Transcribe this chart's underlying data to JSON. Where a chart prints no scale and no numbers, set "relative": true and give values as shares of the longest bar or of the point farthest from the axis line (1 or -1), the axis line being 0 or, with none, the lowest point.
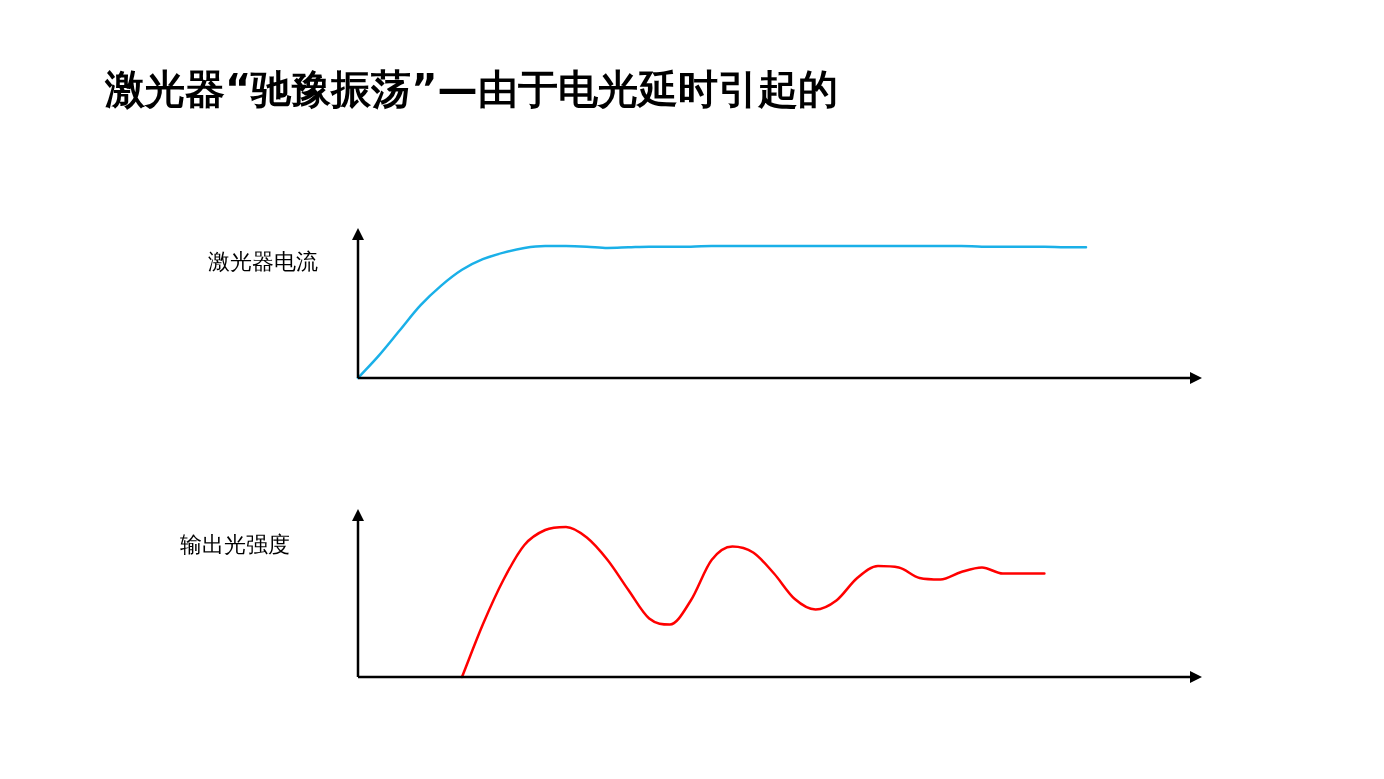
{
  "chart_data": [
    {
      "type": "line",
      "title": "激光器“驰豫振荡”—由于电光延时引起的",
      "ylabel": "激光器电流",
      "relative": true,
      "categories": [
        null,
        null,
        null,
        null,
        null,
        null,
        null,
        null,
        null,
        null,
        null,
        null,
        null,
        null,
        null,
        null,
        null,
        null,
        null,
        null,
        null,
        null,
        null,
        null,
        null,
        null,
        null,
        null,
        null,
        null,
        null,
        null,
        null,
        null,
        null,
        null,
        null,
        null,
        null,
        null,
        null
      ],
      "series": [
        {
          "color": "#1ab0e8",
          "values": [
            0,
            0.17,
            0.36,
            0.55,
            0.7,
            0.82,
            0.9,
            0.95,
            0.985,
            1,
            1,
            0.995,
            0.985,
            0.99,
            0.995,
            0.995,
            0.995,
            1,
            1,
            1,
            1,
            1,
            1,
            1,
            1,
            1,
            1,
            1,
            1,
            1,
            0.995,
            0.995,
            0.995,
            0.995,
            0.99,
            0.99,
            null,
            null,
            null,
            null,
            null
          ]
        }
      ]
    },
    {
      "type": "line",
      "ylabel": "输出光强度",
      "relative": true,
      "categories": [
        null,
        null,
        null,
        null,
        null,
        null,
        null,
        null,
        null,
        null,
        null,
        null,
        null,
        null,
        null,
        null,
        null,
        null,
        null,
        null,
        null,
        null,
        null,
        null,
        null,
        null,
        null,
        null,
        null,
        null,
        null,
        null,
        null,
        null,
        null,
        null,
        null,
        null,
        null,
        null,
        null
      ],
      "series": [
        {
          "color": "#ff0000",
          "values": [
            null,
            null,
            null,
            null,
            null,
            0,
            0.35,
            0.65,
            0.88,
            0.98,
            1,
            0.93,
            0.78,
            0.58,
            0.39,
            0.35,
            0.51,
            0.78,
            0.87,
            0.83,
            0.69,
            0.52,
            0.45,
            0.51,
            0.66,
            0.74,
            0.73,
            0.66,
            0.65,
            0.7,
            0.73,
            0.69,
            0.69,
            0.69,
            null,
            null,
            null,
            null,
            null,
            null,
            null
          ]
        }
      ]
    }
  ]
}
